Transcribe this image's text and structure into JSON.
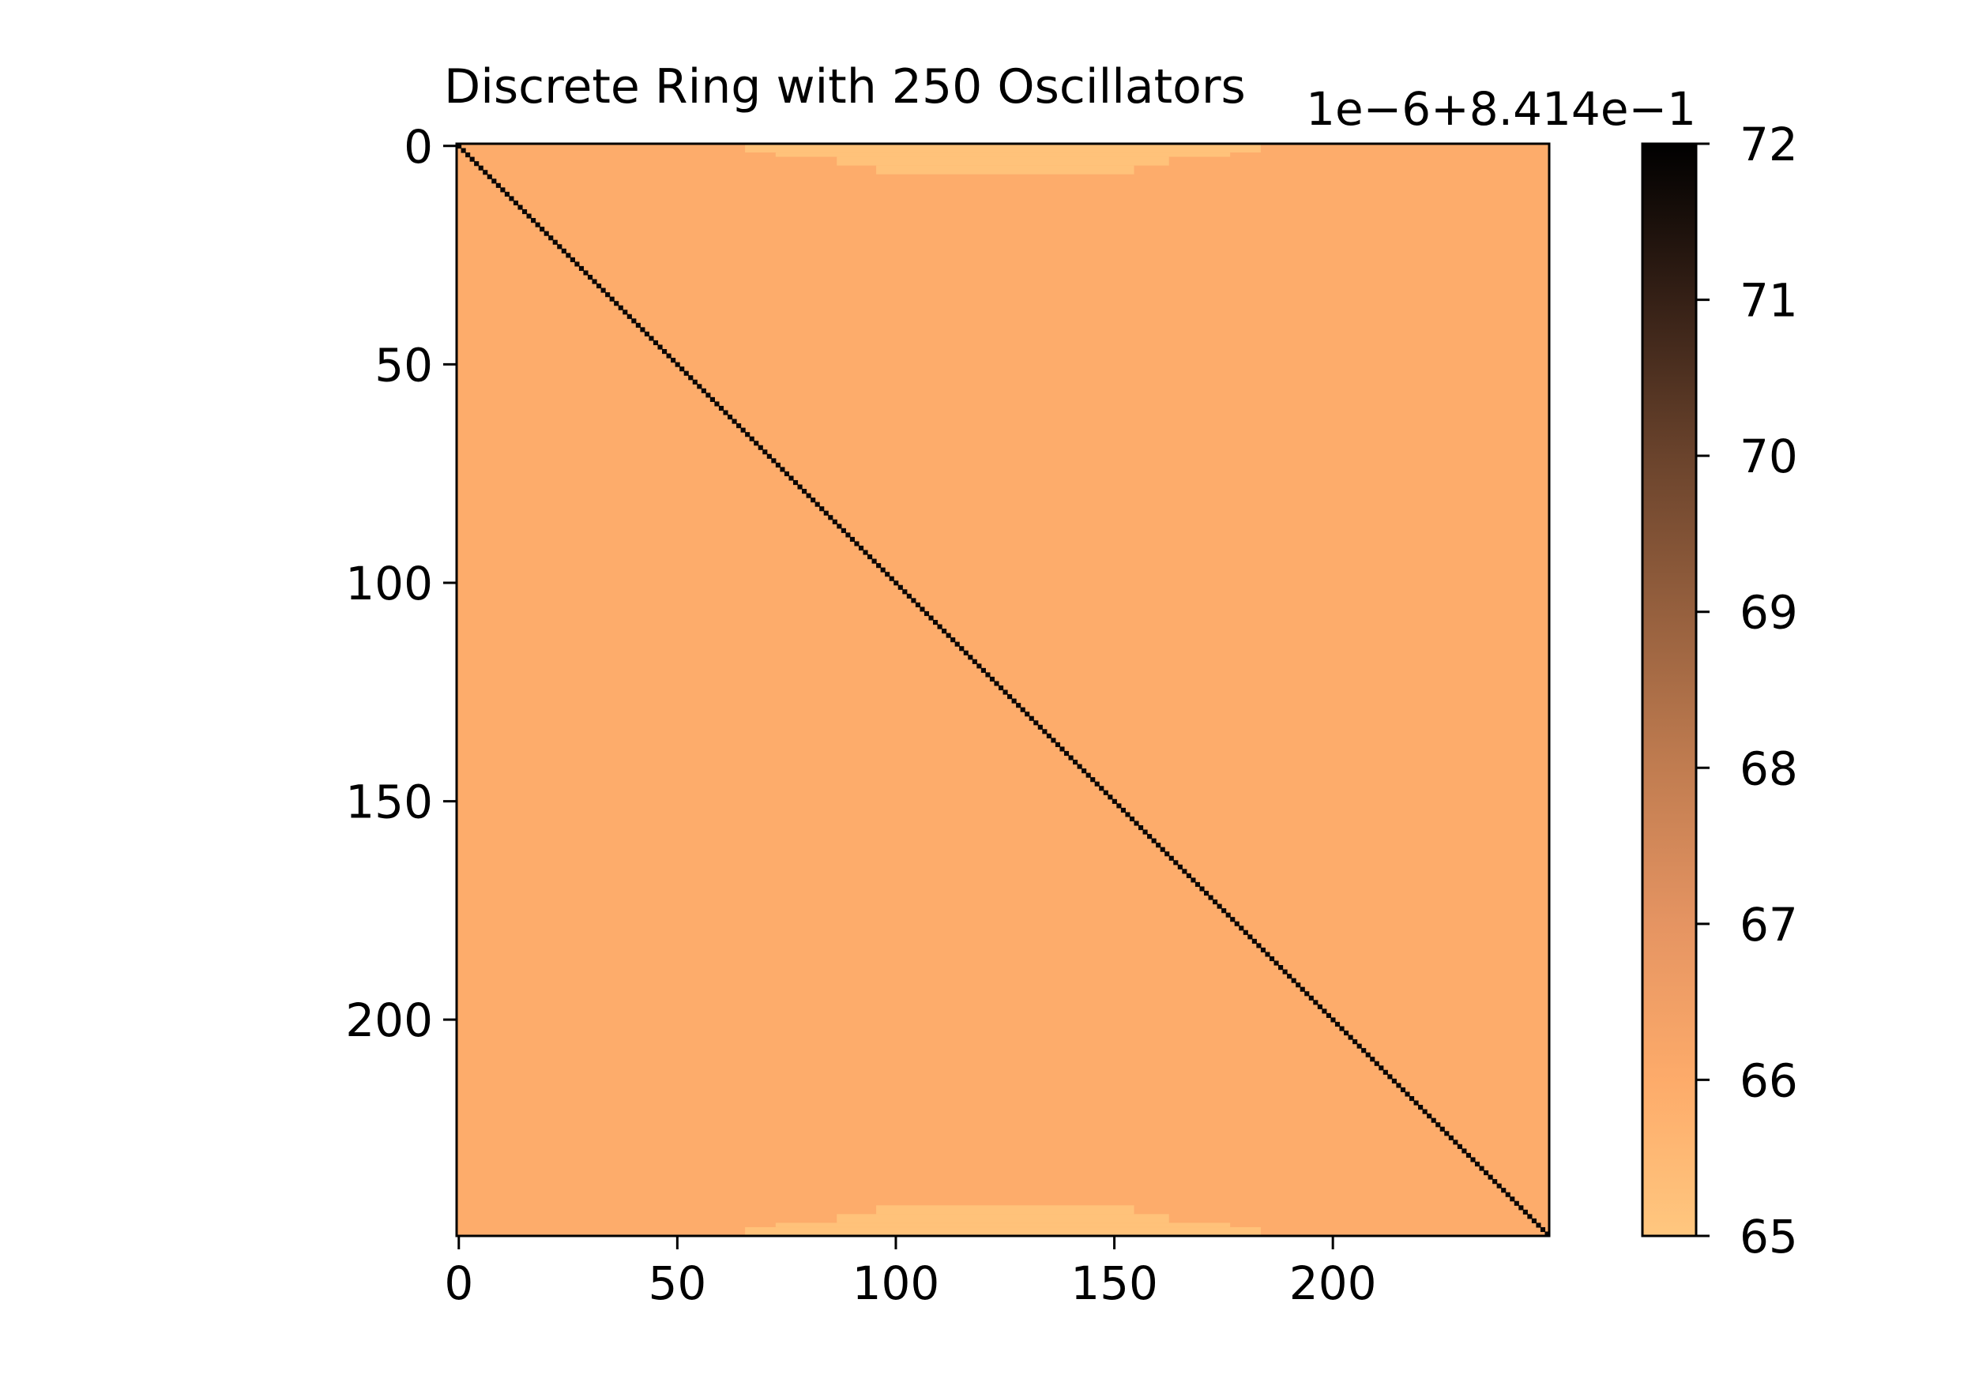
{
  "chart_data": {
    "type": "heatmap",
    "title": "Discrete Ring with 250 Oscillators",
    "xlabel": "",
    "ylabel": "",
    "n": 250,
    "x_ticks": [
      0,
      50,
      100,
      150,
      200
    ],
    "y_ticks": [
      0,
      50,
      100,
      150,
      200
    ],
    "x_tick_labels": [
      "0",
      "50",
      "100",
      "150",
      "200"
    ],
    "y_tick_labels": [
      "0",
      "50",
      "100",
      "150",
      "200"
    ],
    "xlim": [
      -0.5,
      249.5
    ],
    "ylim": [
      249.5,
      -0.5
    ],
    "y_axis_inverted": true,
    "colormap": "copper_r",
    "colorbar": {
      "range": [
        65,
        72
      ],
      "ticks": [
        65,
        66,
        67,
        68,
        69,
        70,
        71,
        72
      ],
      "tick_labels": [
        "65",
        "66",
        "67",
        "68",
        "69",
        "70",
        "71",
        "72"
      ],
      "offset_text": "1e−6+8.414e−1"
    },
    "values_description_units": "cell value = 0.8414 + v*1e-6, v shown on colorbar",
    "diagonal_value": 72,
    "background_value": 66,
    "edge_band_value": 65,
    "edge_band_rows": [
      {
        "row_span": [
          0,
          1
        ],
        "col_span": [
          66,
          183
        ]
      },
      {
        "row_span": [
          2,
          2
        ],
        "col_span": [
          73,
          176
        ]
      },
      {
        "row_span": [
          3,
          4
        ],
        "col_span": [
          87,
          162
        ]
      },
      {
        "row_span": [
          5,
          6
        ],
        "col_span": [
          96,
          154
        ]
      },
      {
        "row_span": [
          243,
          244
        ],
        "col_span": [
          96,
          154
        ]
      },
      {
        "row_span": [
          245,
          246
        ],
        "col_span": [
          87,
          162
        ]
      },
      {
        "row_span": [
          247,
          247
        ],
        "col_span": [
          73,
          176
        ]
      },
      {
        "row_span": [
          248,
          249
        ],
        "col_span": [
          66,
          183
        ]
      }
    ],
    "colors": {
      "background": "#fdac6b",
      "edge_band": "#ffc27a",
      "diagonal": "#0a0604",
      "cmap_stops": [
        "#ffc77f",
        "#fdab6a",
        "#d1885a",
        "#a56b48",
        "#6f4731",
        "#3a2518",
        "#000000"
      ]
    },
    "grid": false
  }
}
